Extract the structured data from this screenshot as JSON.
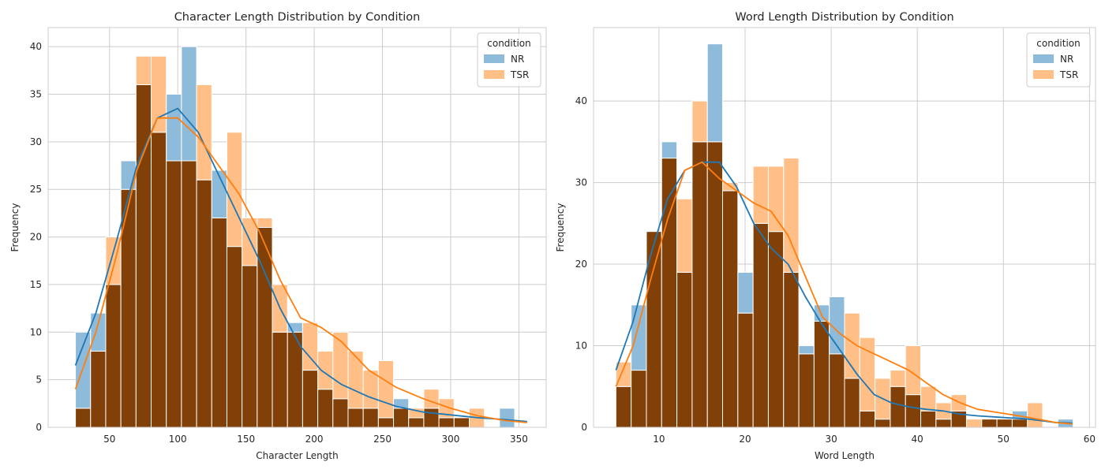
{
  "chart_data": [
    {
      "type": "bar",
      "subtype": "histogram-with-kde",
      "title": "Character Length Distribution by Condition",
      "xlabel": "Character Length",
      "ylabel": "Frequency",
      "xlim": [
        5,
        370
      ],
      "ylim": [
        0,
        42
      ],
      "xticks": [
        50,
        100,
        150,
        200,
        250,
        300,
        350
      ],
      "yticks": [
        0,
        5,
        10,
        15,
        20,
        25,
        30,
        35,
        40
      ],
      "grid": true,
      "legend": {
        "title": "condition",
        "position": "top-right"
      },
      "bin_start": 25,
      "bin_width": 11.1,
      "series": [
        {
          "name": "NR",
          "color": "#1f77b4",
          "values": [
            10,
            12,
            15,
            28,
            36,
            31,
            35,
            40,
            26,
            27,
            19,
            17,
            21,
            10,
            11,
            6,
            4,
            3,
            2,
            2,
            1,
            3,
            1,
            2,
            1,
            1,
            0,
            0,
            2,
            0
          ]
        },
        {
          "name": "TSR",
          "color": "#ff7f0e",
          "values": [
            2,
            8,
            20,
            25,
            39,
            39,
            28,
            28,
            36,
            22,
            31,
            22,
            22,
            15,
            10,
            11,
            8,
            10,
            8,
            6,
            7,
            2,
            2,
            4,
            3,
            1,
            2,
            0,
            0,
            0
          ]
        }
      ],
      "kde": [
        {
          "name": "NR",
          "x": [
            25,
            40,
            55,
            70,
            85,
            100,
            115,
            130,
            145,
            160,
            175,
            190,
            205,
            220,
            240,
            260,
            280,
            300,
            320,
            340,
            356
          ],
          "y": [
            6.5,
            12,
            19.5,
            27.5,
            32.5,
            33.5,
            31,
            26.5,
            22,
            17.5,
            12.5,
            8.5,
            6,
            4.5,
            3.2,
            2.2,
            1.6,
            1.3,
            1,
            0.8,
            0.6
          ]
        },
        {
          "name": "TSR",
          "x": [
            25,
            40,
            55,
            70,
            85,
            100,
            115,
            130,
            145,
            160,
            175,
            190,
            205,
            220,
            240,
            260,
            280,
            300,
            320,
            340,
            356
          ],
          "y": [
            4,
            10,
            18,
            27,
            32.5,
            32.5,
            30.5,
            27.5,
            24.5,
            20.5,
            15.5,
            11.5,
            10.5,
            9,
            6,
            4.2,
            3,
            2,
            1.2,
            0.7,
            0.5
          ]
        }
      ]
    },
    {
      "type": "bar",
      "subtype": "histogram-with-kde",
      "title": "Word Length Distribution by Condition",
      "xlabel": "Word Length",
      "ylabel": "Frequency",
      "xlim": [
        2.4,
        60.7
      ],
      "ylim": [
        0,
        49
      ],
      "xticks": [
        10,
        20,
        30,
        40,
        50,
        60
      ],
      "yticks": [
        0,
        10,
        20,
        30,
        40
      ],
      "grid": true,
      "legend": {
        "title": "condition",
        "position": "top-right"
      },
      "bin_start": 5,
      "bin_width": 1.77,
      "series": [
        {
          "name": "NR",
          "color": "#1f77b4",
          "values": [
            5,
            15,
            24,
            35,
            19,
            35,
            47,
            29,
            19,
            25,
            24,
            19,
            10,
            15,
            16,
            6,
            2,
            1,
            5,
            4,
            2,
            1,
            2,
            0,
            1,
            1,
            2,
            0,
            0,
            1
          ]
        },
        {
          "name": "TSR",
          "color": "#ff7f0e",
          "values": [
            8,
            7,
            24,
            33,
            28,
            40,
            35,
            30,
            14,
            32,
            32,
            33,
            9,
            13,
            9,
            14,
            11,
            6,
            7,
            10,
            5,
            3,
            4,
            1,
            1,
            1,
            1,
            3,
            0,
            0
          ]
        }
      ],
      "kde": [
        {
          "name": "NR",
          "x": [
            5,
            7,
            9,
            11,
            13,
            15,
            17,
            19,
            21,
            23,
            25,
            27,
            29,
            31,
            33,
            35,
            37,
            39,
            41,
            43,
            45,
            47,
            50,
            53,
            56,
            58
          ],
          "y": [
            7,
            13,
            21,
            28,
            31.5,
            32.5,
            32.5,
            29.5,
            25,
            22,
            20,
            16,
            12.5,
            9.5,
            6.5,
            4,
            3,
            2.5,
            2.2,
            2,
            1.6,
            1.4,
            1.2,
            1,
            0.6,
            0.5
          ]
        },
        {
          "name": "TSR",
          "x": [
            5,
            7,
            9,
            11,
            13,
            15,
            17,
            19,
            21,
            23,
            25,
            27,
            29,
            31,
            33,
            35,
            37,
            39,
            41,
            43,
            45,
            47,
            50,
            53,
            56,
            58
          ],
          "y": [
            5,
            10,
            18,
            25.5,
            31.5,
            32.5,
            30.5,
            29,
            27.5,
            26.5,
            23.5,
            18.5,
            13.5,
            11.5,
            10,
            9,
            8,
            7,
            5.5,
            4,
            3,
            2.2,
            1.7,
            1.2,
            0.6,
            0.4
          ]
        }
      ]
    }
  ]
}
